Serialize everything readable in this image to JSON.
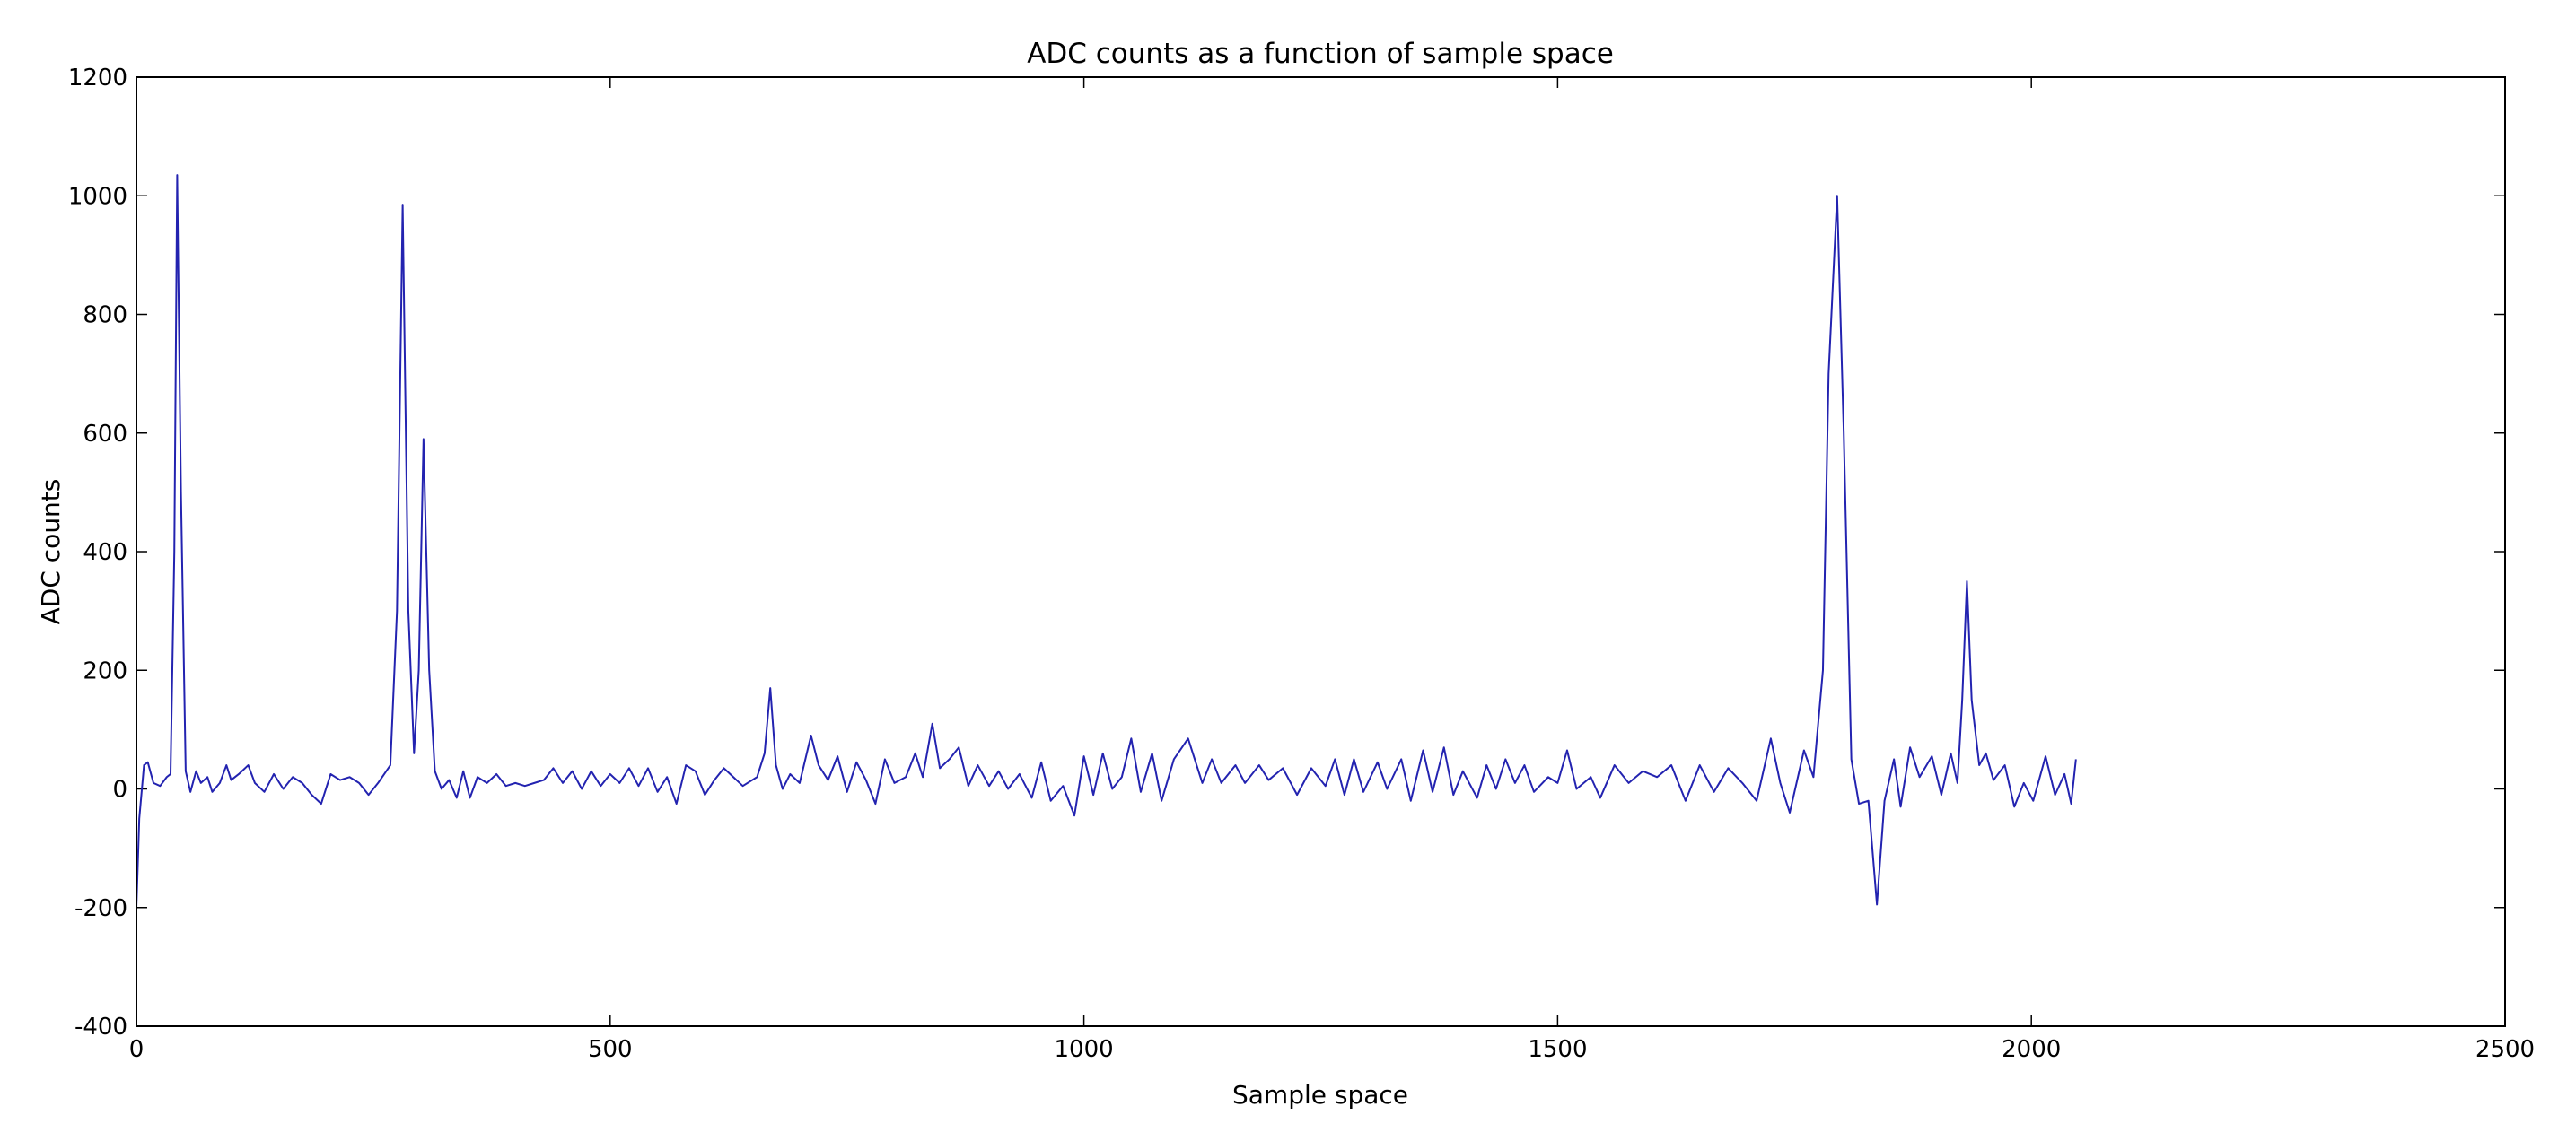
{
  "chart_data": {
    "type": "line",
    "title": "ADC counts as a function of sample space",
    "x_label": "Sample space",
    "y_label": "ADC counts",
    "xlim": [
      0,
      2500
    ],
    "xticks": [
      0,
      500,
      1000,
      1500,
      2000,
      2500
    ],
    "ylim": [
      -400,
      1200
    ],
    "yticks": [
      -400,
      -200,
      0,
      200,
      400,
      600,
      800,
      1000,
      1200
    ],
    "grid": false,
    "series": [
      {
        "color": "#2323b0",
        "x": [
          0,
          3,
          8,
          12,
          18,
          25,
          32,
          36,
          40,
          43,
          47,
          52,
          57,
          63,
          68,
          75,
          80,
          88,
          95,
          100,
          108,
          118,
          125,
          135,
          145,
          155,
          165,
          175,
          185,
          195,
          205,
          215,
          225,
          235,
          245,
          255,
          268,
          275,
          281,
          287,
          293,
          298,
          303,
          309,
          315,
          322,
          330,
          338,
          345,
          352,
          360,
          370,
          380,
          390,
          400,
          410,
          420,
          430,
          440,
          450,
          460,
          470,
          480,
          490,
          500,
          510,
          520,
          530,
          540,
          550,
          560,
          570,
          580,
          590,
          600,
          610,
          620,
          630,
          640,
          655,
          663,
          669,
          675,
          682,
          690,
          700,
          712,
          720,
          730,
          740,
          750,
          760,
          770,
          780,
          790,
          800,
          812,
          822,
          830,
          840,
          848,
          858,
          868,
          878,
          888,
          900,
          910,
          920,
          932,
          945,
          955,
          965,
          978,
          990,
          1000,
          1010,
          1020,
          1030,
          1040,
          1050,
          1060,
          1072,
          1082,
          1095,
          1110,
          1125,
          1135,
          1145,
          1160,
          1170,
          1185,
          1195,
          1210,
          1225,
          1240,
          1255,
          1265,
          1275,
          1285,
          1295,
          1310,
          1320,
          1335,
          1345,
          1358,
          1368,
          1380,
          1390,
          1400,
          1415,
          1425,
          1435,
          1445,
          1455,
          1465,
          1475,
          1490,
          1500,
          1510,
          1520,
          1535,
          1545,
          1560,
          1575,
          1590,
          1605,
          1620,
          1635,
          1650,
          1665,
          1680,
          1695,
          1710,
          1725,
          1735,
          1745,
          1760,
          1770,
          1780,
          1786,
          1795,
          1802,
          1810,
          1818,
          1828,
          1837,
          1845,
          1855,
          1862,
          1872,
          1882,
          1895,
          1905,
          1915,
          1922,
          1927,
          1932,
          1937,
          1945,
          1952,
          1960,
          1972,
          1982,
          1992,
          2002,
          2015,
          2025,
          2035,
          2042,
          2047
        ],
        "values": [
          -200,
          -50,
          40,
          45,
          10,
          5,
          20,
          25,
          400,
          1035,
          500,
          30,
          -5,
          30,
          10,
          20,
          -5,
          10,
          40,
          15,
          25,
          40,
          10,
          -5,
          25,
          0,
          20,
          10,
          -10,
          -25,
          25,
          15,
          20,
          10,
          -10,
          10,
          40,
          300,
          985,
          300,
          60,
          200,
          590,
          200,
          30,
          0,
          15,
          -15,
          30,
          -15,
          20,
          10,
          25,
          5,
          10,
          5,
          10,
          15,
          35,
          10,
          30,
          0,
          30,
          5,
          25,
          10,
          35,
          5,
          35,
          -5,
          20,
          -25,
          40,
          30,
          -10,
          15,
          35,
          20,
          5,
          20,
          60,
          170,
          40,
          0,
          25,
          10,
          90,
          40,
          15,
          55,
          -5,
          45,
          15,
          -25,
          50,
          10,
          20,
          60,
          20,
          110,
          35,
          50,
          70,
          5,
          40,
          5,
          30,
          0,
          25,
          -15,
          45,
          -20,
          5,
          -45,
          55,
          -10,
          60,
          0,
          20,
          85,
          -5,
          60,
          -20,
          50,
          85,
          10,
          50,
          10,
          40,
          10,
          40,
          15,
          35,
          -10,
          35,
          5,
          50,
          -10,
          50,
          -5,
          45,
          0,
          50,
          -20,
          65,
          -5,
          70,
          -10,
          30,
          -15,
          40,
          0,
          50,
          10,
          40,
          -5,
          20,
          10,
          65,
          0,
          20,
          -15,
          40,
          10,
          30,
          20,
          40,
          -20,
          40,
          -5,
          35,
          10,
          -20,
          85,
          10,
          -40,
          65,
          20,
          200,
          700,
          1000,
          600,
          50,
          -25,
          -20,
          -195,
          -20,
          50,
          -30,
          70,
          20,
          55,
          -10,
          60,
          10,
          150,
          350,
          150,
          40,
          60,
          15,
          40,
          -30,
          10,
          -20,
          55,
          -10,
          25,
          -25,
          50
        ]
      }
    ]
  }
}
